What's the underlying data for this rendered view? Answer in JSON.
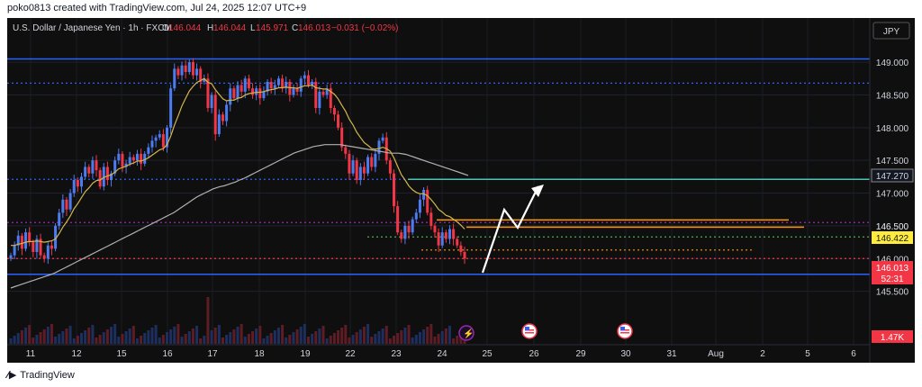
{
  "header": {
    "text": "poko0813 created with TradingView.com, Jul 24, 2025 12:07 UTC+9"
  },
  "symbol": {
    "name": "U.S. Dollar / Japanese Yen · 1h · FXCM",
    "o_label": "O",
    "o": "146.044",
    "h_label": "H",
    "h": "146.044",
    "l_label": "L",
    "l": "145.971",
    "c_label": "C",
    "c": "146.013",
    "change": "−0.031 (−0.02%)"
  },
  "currency_badge": "JPY",
  "footer": {
    "brand": "TradingView"
  },
  "colors": {
    "background": "#0f0f0f",
    "bull": "#4d7cf0",
    "bear": "#f23645",
    "ma_fast": "#d4b64a",
    "ma_slow": "#b0b0b0",
    "support_blue": "#2962ff",
    "teal": "#4fc3b8",
    "orange": "#ff9800",
    "green": "#4caf50",
    "price_tag": "#f23645",
    "level_tag": "#ffeb3b"
  },
  "chart_data": {
    "type": "candlestick",
    "y_ticks": [
      "149.000",
      "148.500",
      "148.000",
      "147.500",
      "147.000",
      "146.500",
      "146.000",
      "145.500"
    ],
    "y_tick_values": [
      149.0,
      148.5,
      148.0,
      147.5,
      147.0,
      146.5,
      146.0,
      145.5
    ],
    "ylim": [
      145.0,
      149.4
    ],
    "x_ticks": [
      "11",
      "12",
      "15",
      "16",
      "17",
      "18",
      "19",
      "22",
      "23",
      "24",
      "25",
      "26",
      "29",
      "30",
      "31",
      "Aug",
      "2",
      "5",
      "6"
    ],
    "price_labels": {
      "level_upper": "147.270",
      "level_mid": "146.422",
      "level_mid_hidden": "146.500",
      "current": "146.013",
      "countdown": "52:31"
    },
    "volume_label": "1.47K",
    "horizontal_levels": [
      {
        "value": 149.05,
        "style": "solid",
        "color": "#2962ff"
      },
      {
        "value": 148.68,
        "style": "dotted",
        "color": "#2962ff"
      },
      {
        "value": 147.21,
        "style": "dotted",
        "color": "#2962ff"
      },
      {
        "value": 147.21,
        "style": "solid",
        "color": "#4fc3b8"
      },
      {
        "value": 146.59,
        "style": "solid",
        "color": "#ff9800"
      },
      {
        "value": 146.48,
        "style": "solid",
        "color": "#ff9800"
      },
      {
        "value": 146.33,
        "style": "dotted",
        "color": "#4caf50"
      },
      {
        "value": 146.13,
        "style": "dotted",
        "color": "#ff9800"
      },
      {
        "value": 146.55,
        "style": "dotted",
        "color": "#9c27b0"
      },
      {
        "value": 146.0,
        "style": "dotted",
        "color": "#f23645"
      },
      {
        "value": 145.76,
        "style": "solid",
        "color": "#2962ff"
      }
    ],
    "closes": [
      146.05,
      146.2,
      146.35,
      146.15,
      146.4,
      146.25,
      146.1,
      146.3,
      146.05,
      146.0,
      146.2,
      146.15,
      146.5,
      146.7,
      146.9,
      146.75,
      147.0,
      147.2,
      147.1,
      147.25,
      147.4,
      147.3,
      147.5,
      147.35,
      147.1,
      147.4,
      147.2,
      147.3,
      147.5,
      147.6,
      147.4,
      147.45,
      147.55,
      147.5,
      147.6,
      147.45,
      147.6,
      147.7,
      147.8,
      147.85,
      147.9,
      147.7,
      148.0,
      148.6,
      148.9,
      148.8,
      148.95,
      148.85,
      149.0,
      148.8,
      148.9,
      148.7,
      148.75,
      148.3,
      148.5,
      147.9,
      148.2,
      148.1,
      148.35,
      148.6,
      148.45,
      148.65,
      148.55,
      148.75,
      148.6,
      148.5,
      148.6,
      148.45,
      148.55,
      148.7,
      148.6,
      148.65,
      148.75,
      148.6,
      148.7,
      148.5,
      148.6,
      148.55,
      148.75,
      148.8,
      148.65,
      148.7,
      148.3,
      148.55,
      148.5,
      148.6,
      148.3,
      148.2,
      148.0,
      147.7,
      147.6,
      147.3,
      147.5,
      147.2,
      147.4,
      147.3,
      147.55,
      147.4,
      147.6,
      147.8,
      147.85,
      147.5,
      147.3,
      146.8,
      146.4,
      146.3,
      146.5,
      146.4,
      146.6,
      146.7,
      146.9,
      147.05,
      146.7,
      146.5,
      146.4,
      146.2,
      146.4,
      146.3,
      146.45,
      146.3,
      146.2,
      146.1,
      146.0
    ],
    "ma_fast": [
      146.2,
      146.2,
      146.22,
      146.23,
      146.25,
      146.26,
      146.26,
      146.27,
      146.26,
      146.25,
      146.26,
      146.27,
      146.3,
      146.38,
      146.48,
      146.56,
      146.65,
      146.76,
      146.84,
      146.93,
      147.02,
      147.08,
      147.15,
      147.19,
      147.2,
      147.24,
      147.26,
      147.28,
      147.32,
      147.37,
      147.39,
      147.41,
      147.44,
      147.46,
      147.49,
      147.49,
      147.51,
      147.54,
      147.58,
      147.62,
      147.66,
      147.68,
      147.74,
      147.87,
      148.04,
      148.18,
      148.33,
      148.45,
      148.56,
      148.63,
      148.69,
      148.72,
      148.75,
      148.69,
      148.67,
      148.58,
      148.51,
      148.44,
      148.41,
      148.42,
      148.42,
      148.45,
      148.46,
      148.5,
      148.52,
      148.53,
      148.54,
      148.54,
      148.55,
      148.57,
      148.58,
      148.59,
      148.61,
      148.61,
      148.62,
      148.61,
      148.61,
      148.6,
      148.62,
      148.64,
      148.64,
      148.65,
      148.61,
      148.6,
      148.59,
      148.59,
      148.55,
      148.51,
      148.44,
      148.34,
      148.25,
      148.13,
      148.04,
      147.93,
      147.85,
      147.77,
      147.73,
      147.68,
      147.67,
      147.68,
      147.7,
      147.68,
      147.64,
      147.54,
      147.41,
      147.28,
      147.2,
      147.11,
      147.05,
      147.01,
      146.99,
      146.99,
      146.96,
      146.9,
      146.83,
      146.75,
      146.71,
      146.66,
      146.64,
      146.6,
      146.56,
      146.51,
      146.45
    ],
    "ma_slow": [
      145.55,
      145.57,
      145.59,
      145.61,
      145.63,
      145.65,
      145.67,
      145.69,
      145.71,
      145.73,
      145.75,
      145.77,
      145.8,
      145.83,
      145.86,
      145.89,
      145.92,
      145.95,
      145.98,
      146.01,
      146.04,
      146.07,
      146.1,
      146.13,
      146.16,
      146.19,
      146.22,
      146.25,
      146.28,
      146.31,
      146.34,
      146.37,
      146.4,
      146.43,
      146.46,
      146.49,
      146.52,
      146.55,
      146.58,
      146.61,
      146.64,
      146.67,
      146.7,
      146.74,
      146.78,
      146.82,
      146.86,
      146.9,
      146.94,
      146.97,
      147.0,
      147.03,
      147.06,
      147.08,
      147.1,
      147.11,
      147.13,
      147.15,
      147.17,
      147.2,
      147.22,
      147.25,
      147.28,
      147.31,
      147.34,
      147.37,
      147.4,
      147.43,
      147.46,
      147.49,
      147.52,
      147.55,
      147.58,
      147.61,
      147.63,
      147.65,
      147.67,
      147.69,
      147.71,
      147.72,
      147.73,
      147.74,
      147.74,
      147.74,
      147.74,
      147.74,
      147.73,
      147.72,
      147.71,
      147.7,
      147.69,
      147.68,
      147.67,
      147.66,
      147.65,
      147.64,
      147.63,
      147.62,
      147.61,
      147.61,
      147.61,
      147.6,
      147.59,
      147.57,
      147.55,
      147.53,
      147.51,
      147.49,
      147.47,
      147.45,
      147.43,
      147.41,
      147.39,
      147.37,
      147.35,
      147.33,
      147.31,
      147.29,
      147.27
    ]
  }
}
